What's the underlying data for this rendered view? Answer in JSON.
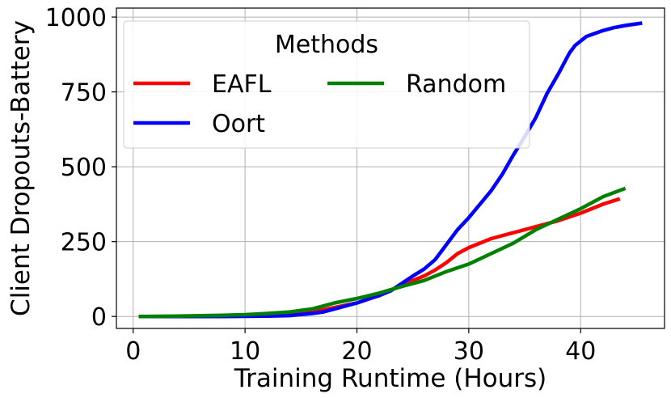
{
  "chart_data": {
    "type": "line",
    "title": "",
    "xlabel": "Training Runtime (Hours)",
    "ylabel": "Client Dropouts-Battery",
    "xlim": [
      -1.5,
      47.5
    ],
    "ylim": [
      -40,
      1030
    ],
    "xticks": [
      0,
      10,
      20,
      30,
      40
    ],
    "yticks": [
      0,
      250,
      500,
      750,
      1000
    ],
    "grid": true,
    "legend": {
      "title": "Methods",
      "placement": "upper-left",
      "columns": 2,
      "order": [
        "EAFL",
        "Oort",
        "Random"
      ]
    },
    "series": [
      {
        "name": "EAFL",
        "color": "#ff0000",
        "x": [
          0.5,
          4,
          8,
          12,
          14,
          16,
          18,
          20,
          22,
          24,
          26,
          27,
          28,
          29,
          30,
          32,
          34,
          36,
          38,
          40,
          42,
          43.5
        ],
        "y": [
          0,
          0,
          2,
          5,
          8,
          15,
          30,
          45,
          70,
          105,
          135,
          155,
          180,
          210,
          230,
          260,
          280,
          300,
          320,
          345,
          375,
          393
        ]
      },
      {
        "name": "Oort",
        "color": "#0000ff",
        "x": [
          0.5,
          4,
          8,
          12,
          14,
          16,
          17,
          18,
          19,
          20,
          21,
          22,
          23,
          24,
          25,
          26,
          27,
          28,
          29,
          30,
          31,
          32,
          33,
          34,
          35,
          36,
          37,
          38,
          39,
          39.5,
          40,
          40.5,
          41,
          42,
          43,
          44,
          45.5
        ],
        "y": [
          0,
          0,
          0,
          1,
          3,
          10,
          15,
          25,
          35,
          45,
          58,
          70,
          85,
          110,
          135,
          158,
          190,
          240,
          290,
          330,
          375,
          420,
          475,
          540,
          600,
          665,
          745,
          810,
          880,
          905,
          920,
          935,
          942,
          955,
          965,
          972,
          980
        ]
      },
      {
        "name": "Random",
        "color": "#008000",
        "x": [
          0.5,
          4,
          8,
          10,
          12,
          14,
          16,
          18,
          20,
          22,
          24,
          26,
          28,
          30,
          32,
          34,
          36,
          38,
          40,
          42,
          44
        ],
        "y": [
          0,
          1,
          4,
          6,
          10,
          15,
          25,
          45,
          60,
          78,
          100,
          120,
          150,
          175,
          210,
          245,
          290,
          325,
          360,
          400,
          428
        ]
      }
    ]
  }
}
